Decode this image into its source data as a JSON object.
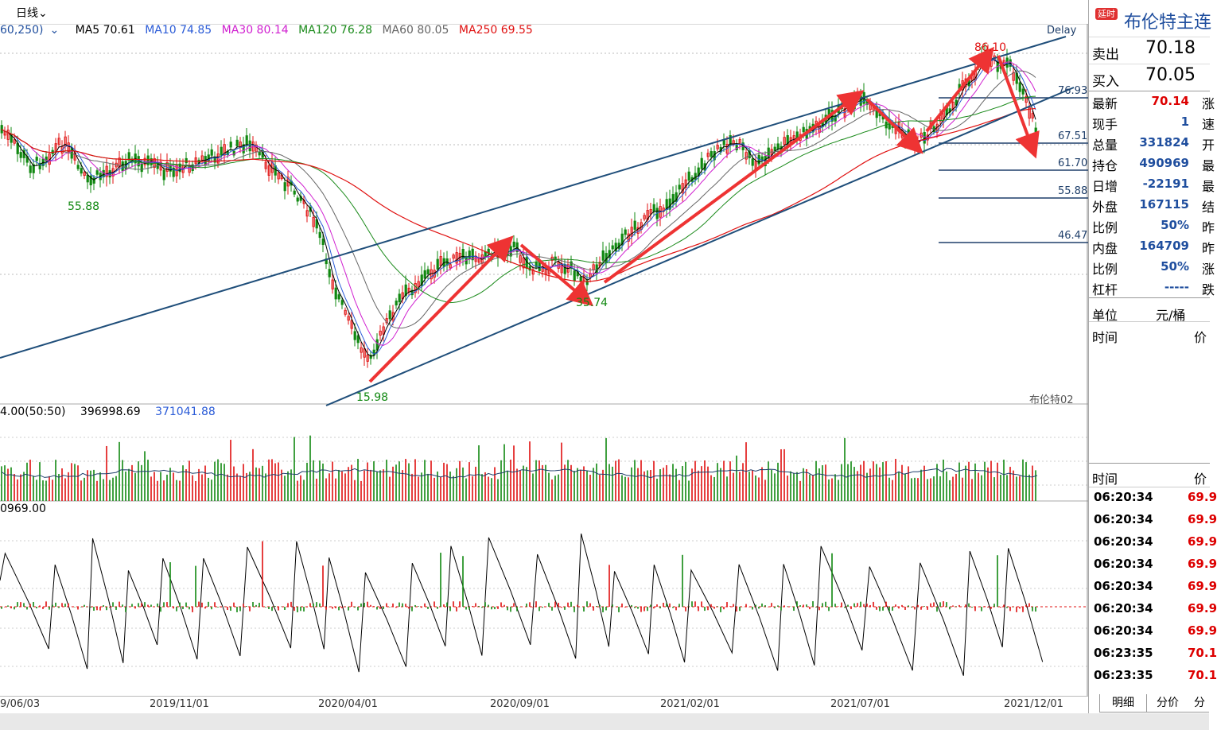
{
  "toolbar": {
    "period": "日线",
    "period_caret": "⌄",
    "delay": "Delay"
  },
  "ma_legend": {
    "params": "60,250)",
    "params_caret": "⌄",
    "ma5": "MA5 70.61",
    "ma10": "MA10 74.85",
    "ma30": "MA30 80.14",
    "ma120": "MA120 76.28",
    "ma60": "MA60 80.05",
    "ma250": "MA250 69.55"
  },
  "colors": {
    "ma5": "#000000",
    "ma10": "#2a5bd7",
    "ma30": "#d020d0",
    "ma120": "#1a8a1a",
    "ma60": "#666666",
    "ma250": "#e01010",
    "up": "#e01010",
    "down": "#118811",
    "level": "#1f3f6a",
    "arrow": "#ee3333"
  },
  "chart": {
    "levels": [
      "76.93",
      "67.51",
      "61.70",
      "55.88",
      "46.47"
    ],
    "marks": {
      "peak": "86.10",
      "low_covid": "15.98",
      "low_2019": "55.88",
      "low_2020": "35.74"
    },
    "watermark": "布伦特02"
  },
  "volume_legend": {
    "a": "4.00(50:50)",
    "b": "396998.69",
    "c": "371041.88"
  },
  "osc_legend": "0969.00",
  "x_axis": [
    "9/06/03",
    "2019/11/01",
    "2020/04/01",
    "2020/09/01",
    "2021/02/01",
    "2021/07/01",
    "2021/12/01"
  ],
  "side": {
    "badge": "延时",
    "title": "布伦特主连",
    "sell_label": "卖出",
    "sell": "70.18",
    "buy_label": "买入",
    "buy": "70.05",
    "stats": [
      {
        "label": "最新",
        "value": "70.14",
        "extra": "涨",
        "color": "#d00"
      },
      {
        "label": "现手",
        "value": "1",
        "extra": "速",
        "color": "#1f4e9e"
      },
      {
        "label": "总量",
        "value": "331824",
        "extra": "开",
        "color": "#1f4e9e"
      },
      {
        "label": "持仓",
        "value": "490969",
        "extra": "最",
        "color": "#1f4e9e"
      },
      {
        "label": "日增",
        "value": "-22191",
        "extra": "最",
        "color": "#1f4e9e"
      },
      {
        "label": "外盘",
        "value": "167115",
        "extra": "结",
        "color": "#1f4e9e"
      },
      {
        "label": "比例",
        "value": "50%",
        "extra": "昨",
        "color": "#1f4e9e"
      },
      {
        "label": "内盘",
        "value": "164709",
        "extra": "昨",
        "color": "#1f4e9e"
      },
      {
        "label": "比例",
        "value": "50%",
        "extra": "涨",
        "color": "#1f4e9e"
      },
      {
        "label": "杠杆",
        "value": "-----",
        "extra": "跌",
        "color": "#1f4e9e"
      }
    ],
    "unit_label": "单位",
    "unit": "元/桶",
    "time_label": "时间",
    "price_label": "价",
    "ticks_header_time": "时间",
    "ticks_header_price": "价",
    "ticks": [
      {
        "time": "06:20:34",
        "price": "69.9"
      },
      {
        "time": "06:20:34",
        "price": "69.9"
      },
      {
        "time": "06:20:34",
        "price": "69.9"
      },
      {
        "time": "06:20:34",
        "price": "69.9"
      },
      {
        "time": "06:20:34",
        "price": "69.9"
      },
      {
        "time": "06:20:34",
        "price": "69.9"
      },
      {
        "time": "06:20:34",
        "price": "69.9"
      },
      {
        "time": "06:23:35",
        "price": "70.1"
      },
      {
        "time": "06:23:35",
        "price": "70.1"
      }
    ],
    "tabs": [
      "明细",
      "分价",
      "分"
    ]
  }
}
